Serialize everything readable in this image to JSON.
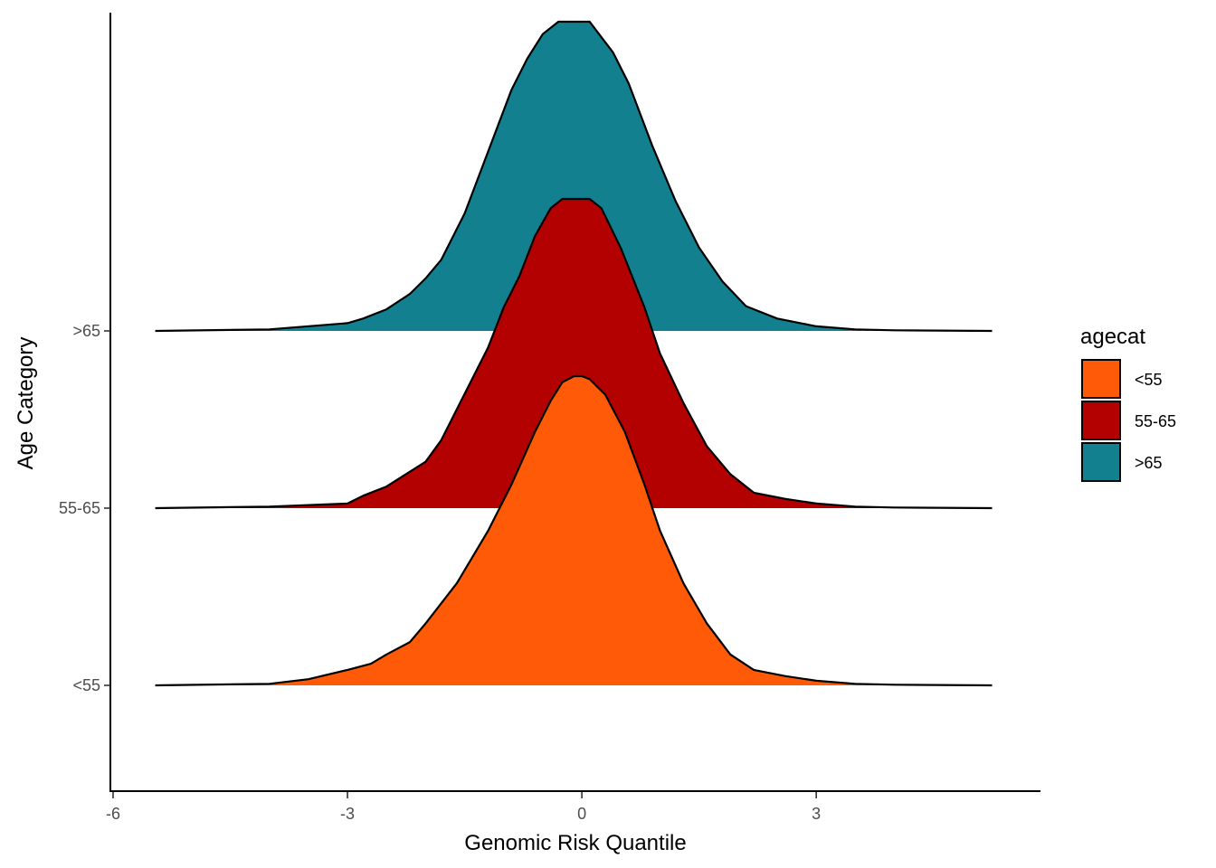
{
  "chart_data": {
    "type": "area",
    "subtype": "ridgeline-density",
    "xlabel": "Genomic Risk Quantile",
    "ylabel": "Age Category",
    "xlim": [
      -6,
      5.87
    ],
    "x_ticks": [
      -6,
      -3,
      0,
      3
    ],
    "categories": [
      "<55",
      "55-65",
      ">65"
    ],
    "grid": false,
    "legend": {
      "title": "agecat",
      "placement": "right",
      "entries": [
        "<55",
        "55-65",
        ">65"
      ]
    },
    "series": [
      {
        "name": "<55",
        "color": "#FF5A07",
        "x": [
          -5.46,
          -4.0,
          -3.5,
          -3.0,
          -2.7,
          -2.5,
          -2.2,
          -2.0,
          -1.6,
          -1.2,
          -0.9,
          -0.6,
          -0.4,
          -0.25,
          -0.1,
          0.0,
          0.1,
          0.3,
          0.55,
          0.8,
          1.0,
          1.3,
          1.6,
          1.9,
          2.2,
          2.6,
          3.0,
          3.5,
          4.0,
          5.25
        ],
        "density": [
          0.0,
          0.005,
          0.02,
          0.05,
          0.07,
          0.1,
          0.14,
          0.2,
          0.33,
          0.5,
          0.65,
          0.82,
          0.92,
          0.98,
          1.0,
          1.0,
          0.99,
          0.94,
          0.82,
          0.65,
          0.5,
          0.33,
          0.2,
          0.1,
          0.05,
          0.03,
          0.015,
          0.005,
          0.002,
          0.0
        ]
      },
      {
        "name": "55-65",
        "color": "#B30000",
        "x": [
          -5.46,
          -4.0,
          -3.0,
          -2.8,
          -2.5,
          -2.0,
          -1.8,
          -1.5,
          -1.2,
          -1.0,
          -0.8,
          -0.6,
          -0.4,
          -0.25,
          -0.1,
          0.0,
          0.1,
          0.25,
          0.5,
          0.8,
          1.0,
          1.3,
          1.6,
          1.9,
          2.2,
          2.6,
          3.0,
          3.5,
          4.0,
          5.25
        ],
        "density": [
          0.0,
          0.005,
          0.015,
          0.04,
          0.07,
          0.15,
          0.22,
          0.37,
          0.52,
          0.65,
          0.75,
          0.88,
          0.97,
          1.0,
          1.0,
          1.0,
          1.0,
          0.97,
          0.84,
          0.65,
          0.5,
          0.34,
          0.2,
          0.11,
          0.05,
          0.03,
          0.015,
          0.005,
          0.002,
          0.0
        ]
      },
      {
        "name": ">65",
        "color": "#13808F",
        "x": [
          -5.46,
          -4.0,
          -3.0,
          -2.8,
          -2.5,
          -2.2,
          -2.0,
          -1.8,
          -1.5,
          -1.2,
          -0.9,
          -0.7,
          -0.5,
          -0.3,
          -0.1,
          0.0,
          0.1,
          0.4,
          0.6,
          0.9,
          1.2,
          1.5,
          1.8,
          2.1,
          2.5,
          3.0,
          3.5,
          4.0,
          5.25
        ],
        "density": [
          0.0,
          0.005,
          0.025,
          0.04,
          0.07,
          0.12,
          0.17,
          0.23,
          0.38,
          0.58,
          0.78,
          0.88,
          0.96,
          1.0,
          1.0,
          1.0,
          1.0,
          0.9,
          0.8,
          0.6,
          0.42,
          0.27,
          0.16,
          0.08,
          0.04,
          0.015,
          0.005,
          0.002,
          0.0
        ]
      }
    ]
  }
}
